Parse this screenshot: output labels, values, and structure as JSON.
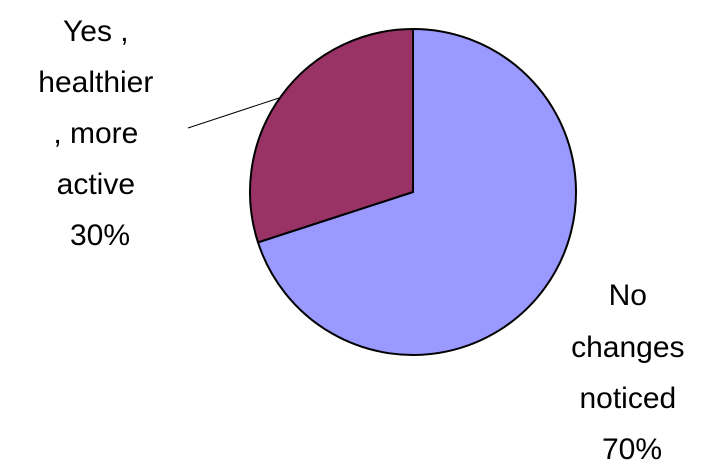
{
  "chart_data": {
    "type": "pie",
    "title": "",
    "start_angle_deg": 0,
    "direction": "clockwise",
    "slices": [
      {
        "label_lines": [
          "No",
          "changes",
          "noticed"
        ],
        "percent_text": "70%",
        "value": 70,
        "color": "#9999ff"
      },
      {
        "label_lines": [
          "Yes ,",
          "healthier",
          ", more",
          "active"
        ],
        "percent_text": "30%",
        "value": 30,
        "color": "#993366"
      }
    ],
    "legend": "none"
  }
}
